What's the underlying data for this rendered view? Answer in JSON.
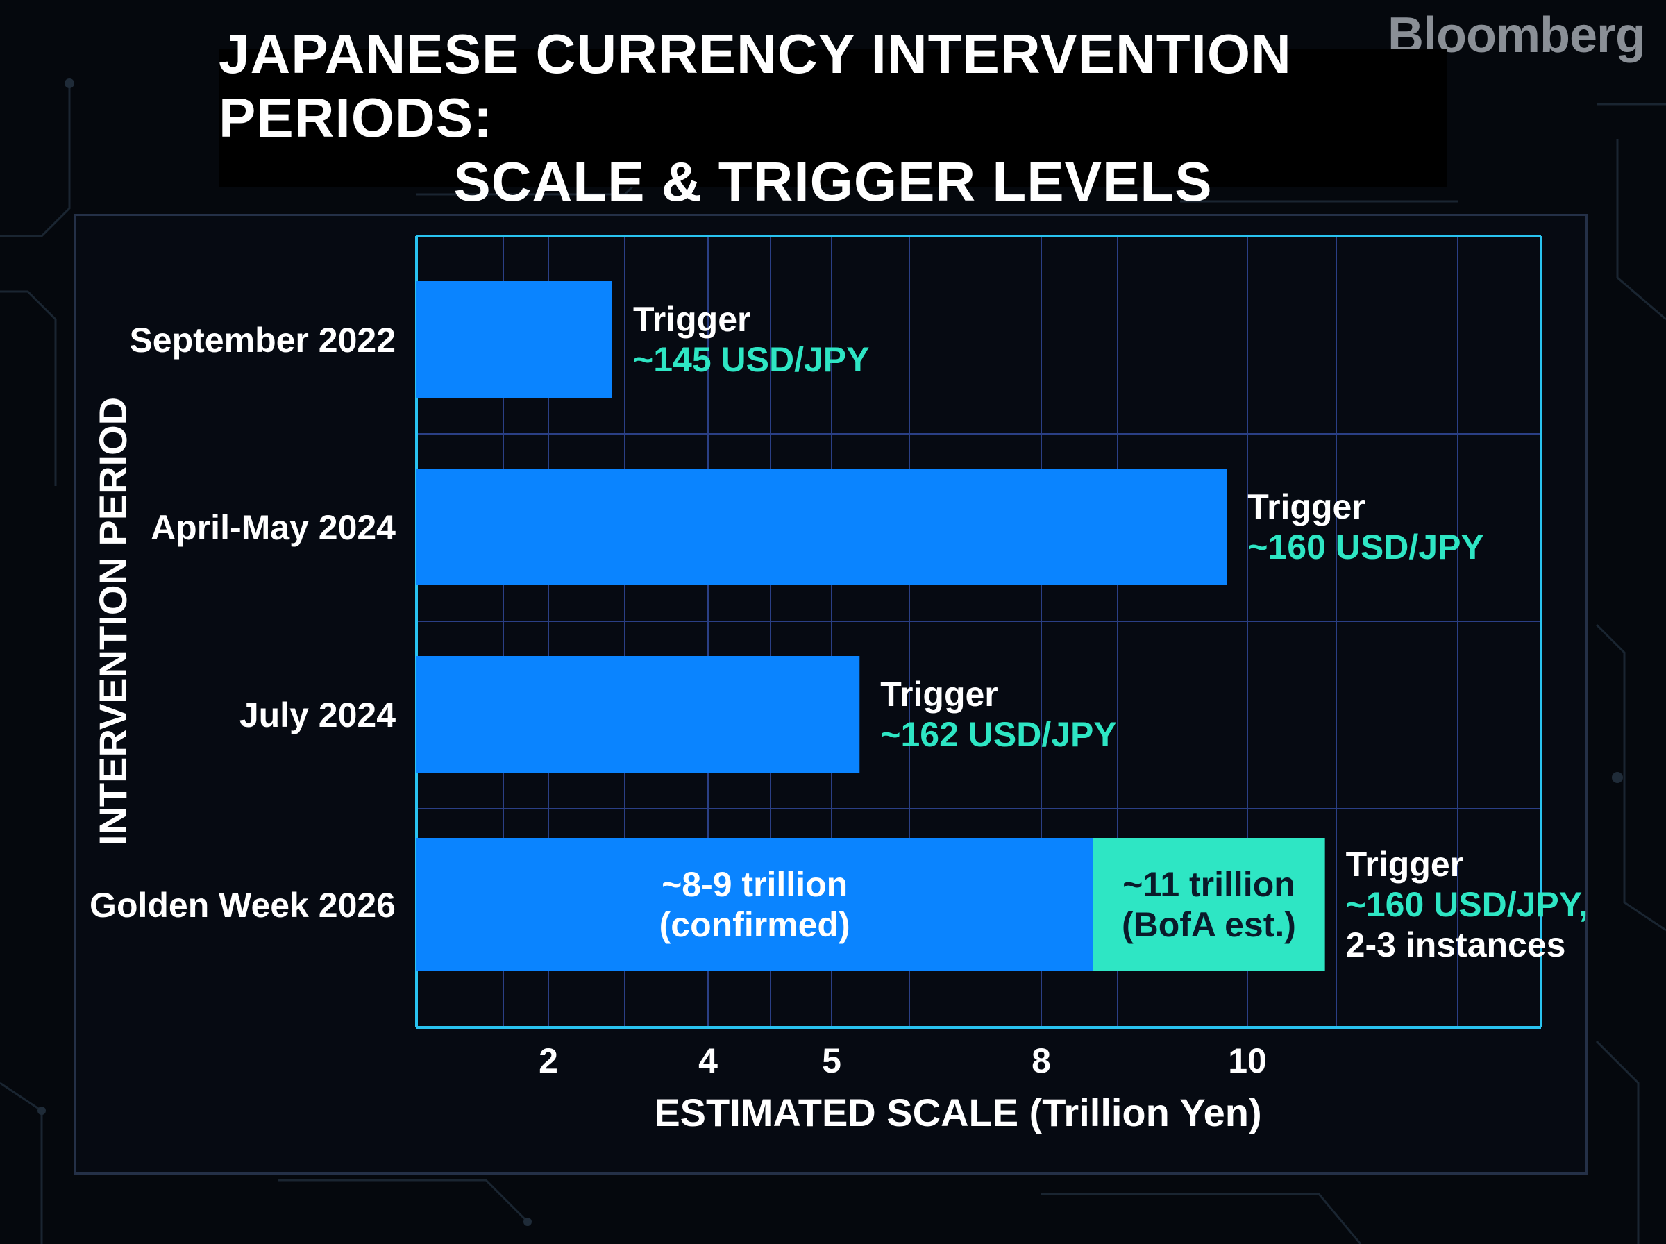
{
  "brand": "Bloomberg",
  "title_lines": [
    "JAPANESE CURRENCY INTERVENTION PERIODS:",
    "SCALE & TRIGGER LEVELS"
  ],
  "colors": {
    "bar": "#0a84ff",
    "estimate": "#2ee6c4",
    "grid": "#2a3f85",
    "axis": "#29c3f0",
    "teal_text": "#2ee6c4"
  },
  "chart_data": {
    "type": "bar",
    "orientation": "horizontal",
    "title": "JAPANESE CURRENCY INTERVENTION PERIODS: SCALE & TRIGGER LEVELS",
    "xlabel": "ESTIMATED SCALE (Trillion Yen)",
    "ylabel": "INTERVENTION PERIOD",
    "x_tick_labels": [
      "2",
      "4",
      "5",
      "8",
      "10"
    ],
    "grid": true,
    "categories": [
      "September 2022",
      "April-May 2024",
      "July 2024",
      "Golden Week 2026"
    ],
    "series": [
      {
        "name": "",
        "values": [
          2.8,
          9.8,
          5.4,
          8.5
        ]
      },
      {
        "name": "",
        "values": [
          0,
          0,
          0,
          2.6
        ]
      }
    ],
    "segment_labels": [
      {
        "category": "Golden Week 2026",
        "lines": [
          "~8-9 trillion",
          "(confirmed)"
        ]
      },
      {
        "category": "Golden Week 2026",
        "lines": [
          "~11 trillion",
          "(BofA est.)"
        ]
      }
    ],
    "annotations": [
      {
        "category": "September 2022",
        "lines": [
          "Trigger",
          "~145 USD/JPY"
        ]
      },
      {
        "category": "April-May 2024",
        "lines": [
          "Trigger",
          "~160 USD/JPY"
        ]
      },
      {
        "category": "July 2024",
        "lines": [
          "Trigger",
          "~162 USD/JPY"
        ]
      },
      {
        "category": "Golden Week 2026",
        "lines": [
          "Trigger",
          "~160 USD/JPY,",
          "2-3 instances"
        ]
      }
    ]
  }
}
